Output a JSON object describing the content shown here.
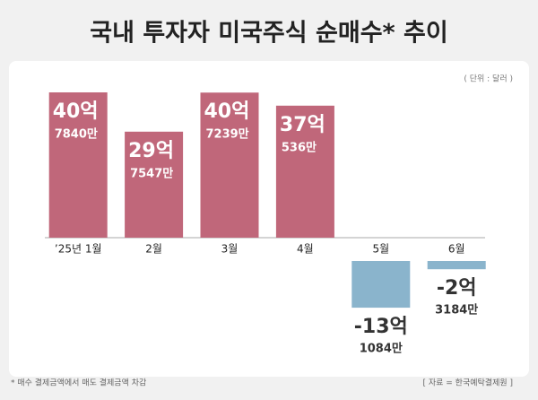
{
  "chart_data": {
    "type": "bar",
    "title": "국내 투자자 미국주식 순매수* 추이",
    "unit_note": "( 단위 : 달러 )",
    "footnote": "* 매수 결제금액에서 매도 결제금액 차감",
    "source": "[ 자료 = 한국예탁결제원 ]",
    "categories": [
      "’25년 1월",
      "2월",
      "3월",
      "4월",
      "5월",
      "6월"
    ],
    "values": [
      4078400000,
      2975470000,
      4072390000,
      3705360000,
      -1310840000,
      -231840000
    ],
    "value_labels": [
      [
        "40억",
        "7840만"
      ],
      [
        "29억",
        "7547만"
      ],
      [
        "40억",
        "7239만"
      ],
      [
        "37억",
        "536만"
      ],
      [
        "-13억",
        "1084만"
      ],
      [
        "-2억",
        "3184만"
      ]
    ],
    "positive_color": "#c0677a",
    "negative_color": "#8ab4cc"
  }
}
